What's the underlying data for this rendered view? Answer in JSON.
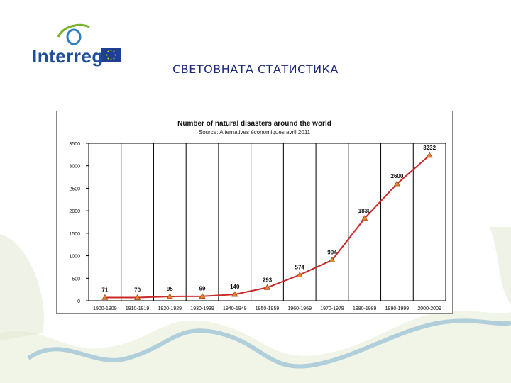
{
  "slide": {
    "logo_text": "Interreg",
    "title": "СВЕТОВНАТА СТАТИСТИКА"
  },
  "colors": {
    "line": "#cc2a2a",
    "marker": "#e8822a",
    "logo_blue": "#1f4e9b",
    "eu_flag": "#1d3f95",
    "eu_stars": "#f2cc1d",
    "swoosh_green": "#78b42a",
    "river_blue": "#1e6fa8"
  },
  "chart_data": {
    "type": "line",
    "title": "Number of natural disasters around the world",
    "subtitle": "Source: Alternatives économiques avril 2011",
    "categories": [
      "1900-1909",
      "1910-1919",
      "1920-1929",
      "1930-1939",
      "1940-1949",
      "1950-1959",
      "1960-1969",
      "1970-1979",
      "1980-1989",
      "1990-1999",
      "2000-2009"
    ],
    "values": [
      71,
      70,
      95,
      99,
      140,
      293,
      574,
      904,
      1830,
      2600,
      3232
    ],
    "value_labels": [
      "71",
      "70",
      "95",
      "99",
      "140",
      "293",
      "574",
      "904",
      "1830",
      "2600",
      "3232"
    ],
    "ylim": [
      0,
      3500
    ],
    "yticks": [
      0,
      500,
      1000,
      1500,
      2000,
      2500,
      3000,
      3500
    ],
    "xlabel": "",
    "ylabel": "",
    "grid": "vertical",
    "legend": "none"
  }
}
